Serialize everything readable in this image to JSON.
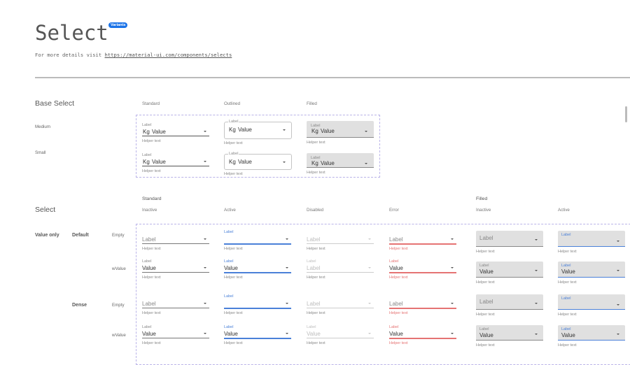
{
  "header": {
    "title": "Select",
    "badge": "Variants",
    "subtitle_prefix": "For more details visit ",
    "link": "https://material-ui.com/components/selects"
  },
  "base": {
    "title": "Base Select",
    "columns": [
      "Standard",
      "Outlined",
      "Filled"
    ],
    "rows": [
      {
        "name": "Medium",
        "fields": [
          {
            "label": "Label",
            "prefix": "Kg",
            "value": "Value",
            "helper": "Helper text"
          },
          {
            "label": "Label",
            "prefix": "Kg",
            "value": "Value",
            "helper": "Helper text"
          },
          {
            "label": "Label",
            "prefix": "Kg",
            "value": "Value",
            "helper": "Helper text"
          }
        ]
      },
      {
        "name": "Small",
        "fields": [
          {
            "label": "Label",
            "prefix": "Kg",
            "value": "Value",
            "helper": "Helper text"
          },
          {
            "label": "Label",
            "prefix": "Kg",
            "value": "Value",
            "helper": "Helper text"
          },
          {
            "label": "Label",
            "prefix": "Kg",
            "value": "Value",
            "helper": "Helper text"
          }
        ]
      }
    ]
  },
  "select": {
    "title": "Select",
    "groups": [
      "Standard",
      "Filled"
    ],
    "columns": [
      "Inactive",
      "Active",
      "Disabled",
      "Error",
      "Inactive",
      "Active"
    ],
    "section_label": "Value only",
    "sizes": [
      "Default",
      "Dense"
    ],
    "rows": [
      {
        "name": "Empty",
        "cells": [
          {
            "label": "Label",
            "value": "",
            "helper": "Helper text"
          },
          {
            "label": "Label",
            "value": "",
            "helper": "Helper text"
          },
          {
            "label": "Label",
            "value": "",
            "helper": "Helper text"
          },
          {
            "label": "Label",
            "value": "",
            "helper": "Helper text"
          },
          {
            "label": "Label",
            "value": "",
            "helper": "Helper text"
          },
          {
            "label": "Label",
            "value": "",
            "helper": "Helper text"
          }
        ]
      },
      {
        "name": "wValue",
        "cells": [
          {
            "label": "Label",
            "value": "Value",
            "helper": "Helper text"
          },
          {
            "label": "Label",
            "value": "Value",
            "helper": "Helper text"
          },
          {
            "label": "Label",
            "value": "Label",
            "helper": "Helper text"
          },
          {
            "label": "Label",
            "value": "Value",
            "helper": "Helper text"
          },
          {
            "label": "Label",
            "value": "Value",
            "helper": "Helper text"
          },
          {
            "label": "Label",
            "value": "Value",
            "helper": "Helper text"
          }
        ]
      },
      {
        "name": "Empty",
        "cells": [
          {
            "label": "Label",
            "value": "",
            "helper": "Helper text"
          },
          {
            "label": "Label",
            "value": "",
            "helper": "Helper text"
          },
          {
            "label": "Label",
            "value": "",
            "helper": "Helper text"
          },
          {
            "label": "Label",
            "value": "",
            "helper": "Helper text"
          },
          {
            "label": "Label",
            "value": "",
            "helper": "Helper text"
          },
          {
            "label": "Label",
            "value": "",
            "helper": "Helper text"
          }
        ]
      },
      {
        "name": "wValue",
        "cells": [
          {
            "label": "Label",
            "value": "Value",
            "helper": "Helper text"
          },
          {
            "label": "Label",
            "value": "Value",
            "helper": "Helper text"
          },
          {
            "label": "Label",
            "value": "Value",
            "helper": "Helper text"
          },
          {
            "label": "Label",
            "value": "Value",
            "helper": "Helper text"
          },
          {
            "label": "Label",
            "value": "Value",
            "helper": "Helper text"
          },
          {
            "label": "Label",
            "value": "Value",
            "helper": "Helper text"
          }
        ]
      }
    ]
  },
  "colors": {
    "accent": "#1a73e8",
    "active": "#4a80d8",
    "error": "#e57373",
    "disabled": "#bdbdbd",
    "filled_bg": "#e0e0e0",
    "dashed": "#b9b3e8"
  }
}
